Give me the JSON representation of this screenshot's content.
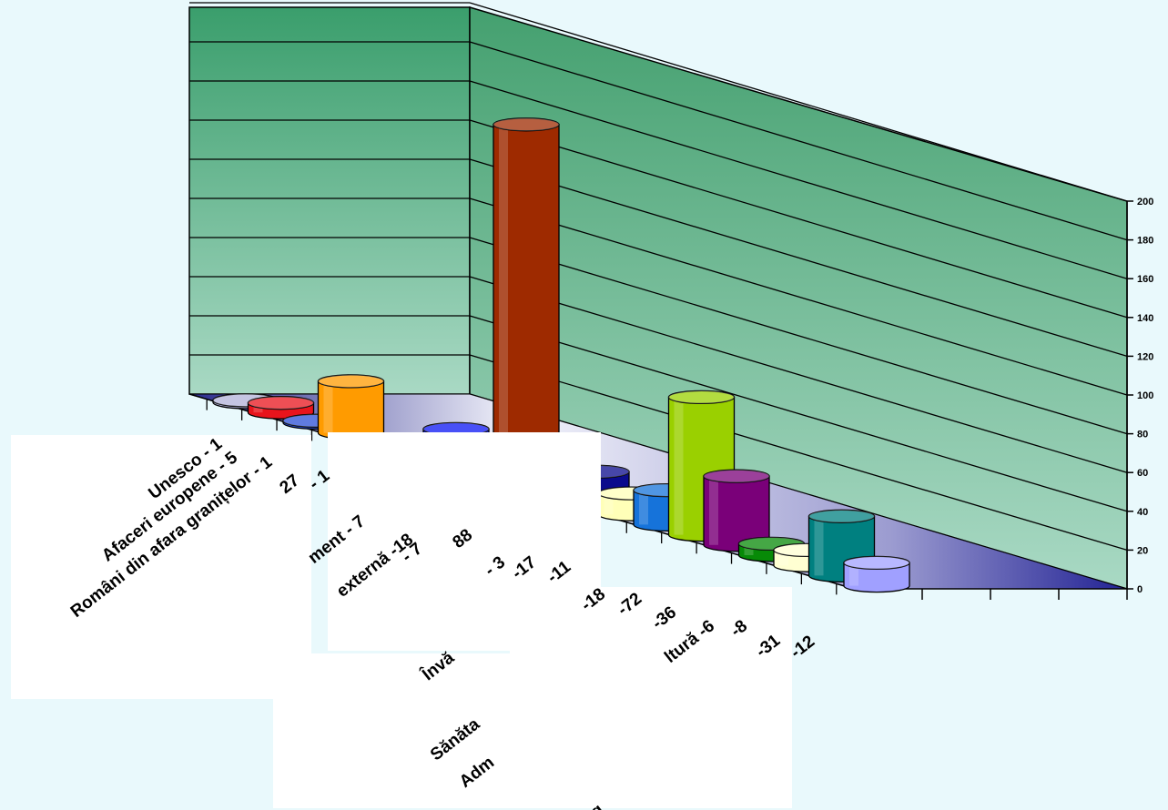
{
  "chart_data": {
    "type": "bar",
    "style": "3d-cylinder",
    "title": "",
    "xlabel": "",
    "ylabel": "",
    "ylim": [
      0,
      200
    ],
    "yticks": [
      0,
      20,
      40,
      60,
      80,
      100,
      120,
      140,
      160,
      180,
      200
    ],
    "grid": true,
    "legend": "none",
    "categories": [
      "Unesco - 1",
      "Afaceri europene - 5",
      "Români din afara granițelor - 1",
      "27",
      "- 1",
      "ment - 7",
      "externă -18",
      "- 7",
      "88",
      "- 3",
      "-17",
      "-11",
      "-18",
      "-72",
      "-36",
      "ltură -6",
      "-8",
      "-31",
      "-12"
    ],
    "values": [
      1,
      5,
      1,
      27,
      1,
      7,
      18,
      7,
      188,
      3,
      17,
      11,
      18,
      72,
      36,
      6,
      8,
      31,
      12
    ],
    "colors": [
      "#b2b2d8",
      "#e8141c",
      "#2b4fd6",
      "#ff9b00",
      "#1a9a1a",
      "#ffa3c8",
      "#0b16f4",
      "#22eaf0",
      "#9e2a00",
      "#ff2ce0",
      "#0a0a8c",
      "#ffffb8",
      "#1673da",
      "#9ad000",
      "#7a0079",
      "#078a07",
      "#ffffd2",
      "#008080",
      "#a0a0ff"
    ],
    "axis_labels": {
      "partial_1": "Învă",
      "partial_2": "Sănăta",
      "partial_3": "Adm",
      "partial_4": "Bug"
    }
  }
}
